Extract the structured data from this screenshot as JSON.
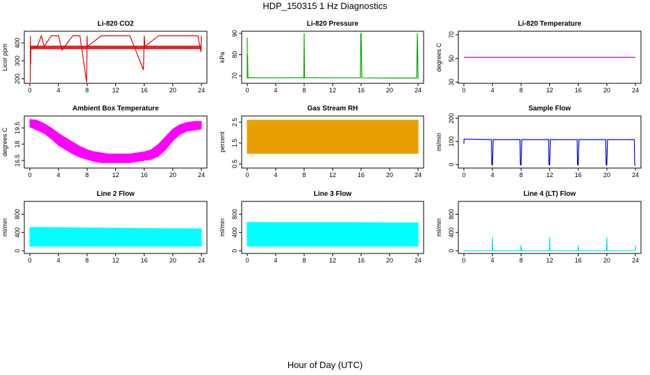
{
  "page_title": "HDP_150315  1 Hz Diagnostics",
  "x_caption": "Hour of Day (UTC)",
  "chart_data": [
    {
      "type": "line",
      "title": "Li-820 CO2",
      "ylabel": "Licor ppm",
      "xlim": [
        0,
        24
      ],
      "ylim": [
        175,
        465
      ],
      "xticks": [
        0,
        4,
        8,
        12,
        16,
        20,
        24
      ],
      "yticks": [
        200,
        300,
        400
      ],
      "colors": {
        "series": "#e00000"
      },
      "series": [
        {
          "band": {
            "x": [
              0.1,
              24
            ],
            "y_low": [
              365,
              365
            ],
            "y_high": [
              385,
              385
            ]
          },
          "x": [
            0.05,
            0.08,
            0.1,
            0.15,
            1.0,
            1.6,
            2.0,
            3.0,
            4.0,
            4.5,
            6.0,
            7.0,
            7.95,
            8.0,
            8.05,
            10.0,
            12.0,
            14.0,
            15.9,
            16.0,
            16.1,
            18.0,
            20.0,
            22.0,
            23.5,
            23.95,
            24.0
          ],
          "y": [
            180,
            440,
            280,
            380,
            375,
            440,
            380,
            440,
            440,
            360,
            440,
            440,
            180,
            440,
            380,
            440,
            440,
            440,
            250,
            440,
            380,
            440,
            440,
            440,
            440,
            350,
            440
          ]
        }
      ]
    },
    {
      "type": "line",
      "title": "Li-820 Pressure",
      "ylabel": "kPa",
      "xlim": [
        0,
        24
      ],
      "ylim": [
        66.5,
        91
      ],
      "xticks": [
        0,
        4,
        8,
        12,
        16,
        20,
        24
      ],
      "yticks": [
        70,
        80,
        90
      ],
      "colors": {
        "series": "#00aa00"
      },
      "series": [
        {
          "x": [
            0.0,
            0.0,
            0.05,
            0.1,
            0.2,
            4,
            7.95,
            8.0,
            8.05,
            12,
            15.9,
            15.95,
            16.0,
            16.1,
            20,
            23.8,
            23.9,
            24.0
          ],
          "y": [
            88,
            69,
            80,
            69,
            69.2,
            69.1,
            69.2,
            90,
            69.2,
            69.1,
            69.1,
            90,
            90,
            69.1,
            69.0,
            69.0,
            90,
            68.5
          ]
        }
      ]
    },
    {
      "type": "line",
      "title": "Li-820 Temperature",
      "ylabel": "degrees C",
      "xlim": [
        0,
        24
      ],
      "ylim": [
        29,
        73
      ],
      "xticks": [
        0,
        4,
        8,
        12,
        16,
        20,
        24
      ],
      "yticks": [
        30,
        50,
        70
      ],
      "colors": {
        "series": "#cc00cc"
      },
      "series": [
        {
          "x": [
            0,
            24
          ],
          "y": [
            51,
            51
          ]
        }
      ]
    },
    {
      "type": "area",
      "title": "Ambient Box Temperature",
      "ylabel": "degrees C",
      "xlim": [
        0,
        24
      ],
      "ylim": [
        15.8,
        20.6
      ],
      "xticks": [
        0,
        4,
        8,
        12,
        16,
        20,
        24
      ],
      "yticks": [
        16.5,
        18.0,
        19.5
      ],
      "colors": {
        "series": "#ff00ff"
      },
      "series": [
        {
          "x": [
            0,
            1,
            2,
            3,
            4,
            5,
            6,
            7,
            8,
            9,
            10,
            11,
            12,
            13,
            14,
            15,
            16,
            17,
            18,
            19,
            20,
            21,
            22,
            23,
            24
          ],
          "y_low": [
            19.6,
            19.3,
            19.0,
            18.5,
            17.9,
            17.5,
            17.1,
            16.8,
            16.6,
            16.4,
            16.3,
            16.3,
            16.3,
            16.3,
            16.3,
            16.4,
            16.5,
            16.6,
            16.9,
            17.5,
            18.3,
            18.9,
            19.2,
            19.3,
            19.4
          ],
          "y_high": [
            20.3,
            20.2,
            19.9,
            19.5,
            19.0,
            18.6,
            18.2,
            17.8,
            17.5,
            17.3,
            17.2,
            17.1,
            17.1,
            17.1,
            17.1,
            17.2,
            17.3,
            17.5,
            18.0,
            18.7,
            19.4,
            19.8,
            20.0,
            20.1,
            20.1
          ]
        }
      ]
    },
    {
      "type": "area",
      "title": "Gas Stream RH",
      "ylabel": "percent",
      "xlim": [
        0,
        24
      ],
      "ylim": [
        0.3,
        2.8
      ],
      "xticks": [
        0,
        4,
        8,
        12,
        16,
        20,
        24
      ],
      "yticks": [
        0.5,
        1.5,
        2.5
      ],
      "colors": {
        "series": "#e8a000"
      },
      "series": [
        {
          "x": [
            0,
            24
          ],
          "y_low": [
            1.0,
            1.0
          ],
          "y_high": [
            2.6,
            2.6
          ]
        }
      ]
    },
    {
      "type": "line",
      "title": "Sample Flow",
      "ylabel": "ml/min",
      "xlim": [
        0,
        24
      ],
      "ylim": [
        -15,
        210
      ],
      "xticks": [
        0,
        4,
        8,
        12,
        16,
        20,
        24
      ],
      "yticks": [
        0,
        100,
        200
      ],
      "colors": {
        "series": "#0000dd"
      },
      "series": [
        {
          "x": [
            0.0,
            0.02,
            0.1,
            3.85,
            3.9,
            4.0,
            4.1,
            7.85,
            7.9,
            8.0,
            8.1,
            11.85,
            11.9,
            12.0,
            12.1,
            15.85,
            15.9,
            16.0,
            16.1,
            19.85,
            19.9,
            20.0,
            20.1,
            23.85,
            23.9,
            24.0
          ],
          "y": [
            90,
            110,
            110,
            108,
            0,
            -2,
            108,
            108,
            0,
            -2,
            108,
            108,
            0,
            -2,
            108,
            108,
            0,
            -2,
            108,
            108,
            0,
            -2,
            108,
            108,
            0,
            -5
          ]
        }
      ]
    },
    {
      "type": "area",
      "title": "Line 2 Flow",
      "ylabel": "ml/min",
      "xlim": [
        0,
        24
      ],
      "ylim": [
        -60,
        1080
      ],
      "xticks": [
        0,
        4,
        8,
        12,
        16,
        20,
        24
      ],
      "yticks": [
        0,
        400,
        800
      ],
      "colors": {
        "series": "#00ffff"
      },
      "series": [
        {
          "x": [
            0,
            24
          ],
          "y_low": [
            100,
            100
          ],
          "y_high": [
            510,
            480
          ]
        }
      ]
    },
    {
      "type": "area",
      "title": "Line 3 Flow",
      "ylabel": "ml/min",
      "xlim": [
        0,
        24
      ],
      "ylim": [
        -60,
        1080
      ],
      "xticks": [
        0,
        4,
        8,
        12,
        16,
        20,
        24
      ],
      "yticks": [
        0,
        400,
        800
      ],
      "colors": {
        "series": "#00ffff"
      },
      "series": [
        {
          "x": [
            0,
            24
          ],
          "y_low": [
            100,
            100
          ],
          "y_high": [
            620,
            610
          ]
        }
      ]
    },
    {
      "type": "line",
      "title": "Line 4 (LT) Flow",
      "ylabel": "ml/min",
      "xlim": [
        0,
        24
      ],
      "ylim": [
        -60,
        1080
      ],
      "xticks": [
        0,
        4,
        8,
        12,
        16,
        20,
        24
      ],
      "yticks": [
        0,
        400,
        800
      ],
      "colors": {
        "series": "#00e0e0"
      },
      "series": [
        {
          "x": [
            0,
            3.95,
            4.0,
            4.05,
            7.95,
            8.0,
            8.05,
            11.95,
            12.0,
            12.05,
            15.95,
            16.0,
            16.05,
            19.95,
            20.0,
            20.05,
            23.95,
            24.0
          ],
          "y": [
            0,
            0,
            300,
            0,
            0,
            120,
            0,
            0,
            300,
            0,
            0,
            120,
            0,
            0,
            300,
            0,
            0,
            120
          ]
        }
      ]
    }
  ]
}
